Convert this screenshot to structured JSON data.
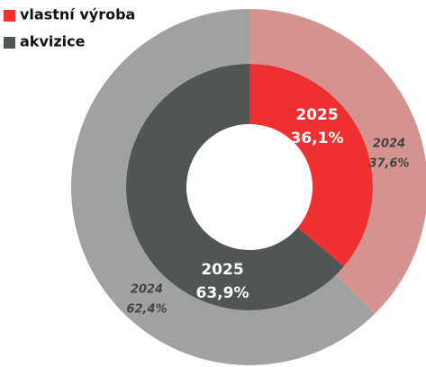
{
  "chart_data": {
    "type": "donut",
    "categories": [
      "vlastní výroba",
      "akvizice"
    ],
    "legend_colors": [
      "#ee3030",
      "#525555"
    ],
    "rings": [
      {
        "name": "2024",
        "values": [
          37.6,
          62.4
        ],
        "value_labels": [
          "37,6%",
          "62,4%"
        ],
        "colors": [
          "#d49390",
          "#a0a2a2"
        ]
      },
      {
        "name": "2025",
        "values": [
          36.1,
          63.9
        ],
        "value_labels": [
          "36,1%",
          "63,9%"
        ],
        "colors": [
          "#ee3030",
          "#525555"
        ]
      }
    ]
  }
}
